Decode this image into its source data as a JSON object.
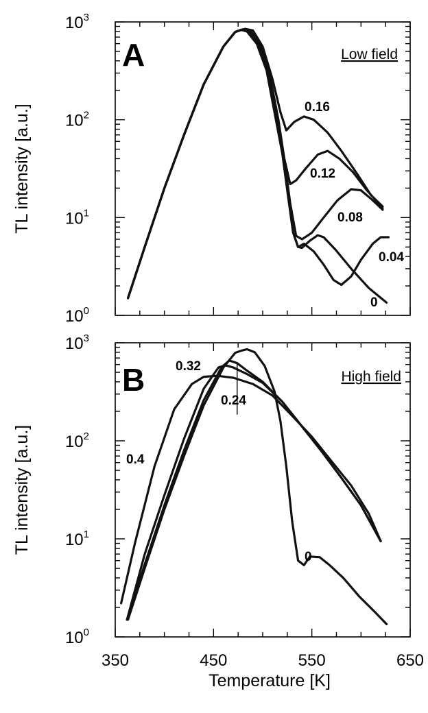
{
  "chart_data": [
    {
      "panel": "A",
      "type": "line",
      "title": "",
      "tag": "Low field",
      "ylabel": "TL intensity [a.u.]",
      "xlabel": "",
      "xlim": [
        350,
        650
      ],
      "ylim": [
        1,
        1000
      ],
      "yscale": "log",
      "x_ticks": [],
      "y_ticks": [
        {
          "base": "10",
          "exp": "0"
        },
        {
          "base": "10",
          "exp": "1"
        },
        {
          "base": "10",
          "exp": "2"
        },
        {
          "base": "10",
          "exp": "3"
        }
      ],
      "series": [
        {
          "name": "0",
          "points": [
            [
              363,
              1.5
            ],
            [
              380,
              5
            ],
            [
              400,
              20
            ],
            [
              420,
              70
            ],
            [
              440,
              230
            ],
            [
              460,
              560
            ],
            [
              472,
              790
            ],
            [
              478,
              830
            ],
            [
              484,
              800
            ],
            [
              494,
              600
            ],
            [
              504,
              320
            ],
            [
              512,
              120
            ],
            [
              520,
              45
            ],
            [
              526,
              16
            ],
            [
              531,
              7
            ],
            [
              536,
              5
            ],
            [
              540,
              4.9
            ],
            [
              548,
              5.8
            ],
            [
              556,
              6.6
            ],
            [
              562,
              6.3
            ],
            [
              574,
              4.7
            ],
            [
              590,
              3
            ],
            [
              608,
              1.9
            ],
            [
              626,
              1.35
            ]
          ]
        },
        {
          "name": "0.04",
          "points": [
            [
              363,
              1.5
            ],
            [
              380,
              5
            ],
            [
              400,
              20
            ],
            [
              420,
              70
            ],
            [
              440,
              230
            ],
            [
              460,
              560
            ],
            [
              472,
              790
            ],
            [
              478,
              830
            ],
            [
              484,
              800
            ],
            [
              494,
              600
            ],
            [
              504,
              320
            ],
            [
              512,
              120
            ],
            [
              520,
              45
            ],
            [
              526,
              16
            ],
            [
              531,
              7
            ],
            [
              536,
              5
            ],
            [
              542,
              5.4
            ],
            [
              552,
              4.5
            ],
            [
              562,
              3.3
            ],
            [
              572,
              2.3
            ],
            [
              580,
              2.05
            ],
            [
              590,
              2.5
            ],
            [
              600,
              3.7
            ],
            [
              612,
              5.4
            ],
            [
              620,
              6.3
            ],
            [
              628,
              6.3
            ]
          ]
        },
        {
          "name": "0.08",
          "points": [
            [
              363,
              1.5
            ],
            [
              380,
              5
            ],
            [
              400,
              20
            ],
            [
              420,
              70
            ],
            [
              440,
              230
            ],
            [
              460,
              560
            ],
            [
              472,
              790
            ],
            [
              478,
              830
            ],
            [
              486,
              810
            ],
            [
              496,
              580
            ],
            [
              506,
              290
            ],
            [
              514,
              110
            ],
            [
              522,
              40
            ],
            [
              528,
              14
            ],
            [
              534,
              6.5
            ],
            [
              540,
              6
            ],
            [
              550,
              7
            ],
            [
              562,
              10
            ],
            [
              576,
              15
            ],
            [
              590,
              19.5
            ],
            [
              600,
              19
            ],
            [
              612,
              15
            ],
            [
              622,
              12
            ]
          ]
        },
        {
          "name": "0.12",
          "points": [
            [
              363,
              1.5
            ],
            [
              380,
              5
            ],
            [
              400,
              20
            ],
            [
              420,
              70
            ],
            [
              440,
              230
            ],
            [
              460,
              560
            ],
            [
              472,
              790
            ],
            [
              480,
              840
            ],
            [
              488,
              800
            ],
            [
              498,
              560
            ],
            [
              508,
              260
            ],
            [
              516,
              100
            ],
            [
              522,
              40
            ],
            [
              528,
              22
            ],
            [
              534,
              24
            ],
            [
              544,
              32
            ],
            [
              556,
              44
            ],
            [
              566,
              48
            ],
            [
              578,
              40
            ],
            [
              592,
              29
            ],
            [
              606,
              19
            ],
            [
              622,
              12.5
            ]
          ]
        },
        {
          "name": "0.16",
          "points": [
            [
              363,
              1.5
            ],
            [
              380,
              5
            ],
            [
              400,
              20
            ],
            [
              420,
              70
            ],
            [
              440,
              230
            ],
            [
              460,
              560
            ],
            [
              472,
              790
            ],
            [
              482,
              850
            ],
            [
              490,
              820
            ],
            [
              500,
              560
            ],
            [
              510,
              260
            ],
            [
              518,
              120
            ],
            [
              524,
              78
            ],
            [
              532,
              95
            ],
            [
              542,
              108
            ],
            [
              552,
              100
            ],
            [
              566,
              74
            ],
            [
              580,
              48
            ],
            [
              596,
              28
            ],
            [
              610,
              17
            ],
            [
              622,
              13
            ]
          ]
        }
      ],
      "labels": [
        {
          "text": "0.16",
          "series": "0.16"
        },
        {
          "text": "0.12",
          "series": "0.12"
        },
        {
          "text": "0.08",
          "series": "0.08"
        },
        {
          "text": "0.04",
          "series": "0.04"
        },
        {
          "text": "0",
          "series": "0"
        }
      ]
    },
    {
      "panel": "B",
      "type": "line",
      "title": "",
      "tag": "High field",
      "ylabel": "TL intensity [a.u.]",
      "xlabel": "Temperature [K]",
      "xlim": [
        350,
        650
      ],
      "ylim": [
        1,
        1000
      ],
      "yscale": "log",
      "x_ticks": [
        "350",
        "450",
        "550",
        "650"
      ],
      "y_ticks": [
        {
          "base": "10",
          "exp": "0"
        },
        {
          "base": "10",
          "exp": "1"
        },
        {
          "base": "10",
          "exp": "2"
        },
        {
          "base": "10",
          "exp": "3"
        }
      ],
      "series": [
        {
          "name": "0",
          "points": [
            [
              363,
              1.5
            ],
            [
              380,
              5
            ],
            [
              400,
              20
            ],
            [
              420,
              70
            ],
            [
              440,
              230
            ],
            [
              460,
              560
            ],
            [
              472,
              790
            ],
            [
              478,
              830
            ],
            [
              484,
              860
            ],
            [
              492,
              800
            ],
            [
              502,
              580
            ],
            [
              512,
              320
            ],
            [
              518,
              160
            ],
            [
              524,
              55
            ],
            [
              530,
              15
            ],
            [
              536,
              6
            ],
            [
              542,
              5.4
            ],
            [
              548,
              6.6
            ],
            [
              558,
              6.5
            ],
            [
              568,
              5.4
            ],
            [
              582,
              4
            ],
            [
              598,
              2.6
            ],
            [
              614,
              1.8
            ],
            [
              626,
              1.35
            ]
          ]
        },
        {
          "name": "0.24",
          "points": [
            [
              362,
              1.5
            ],
            [
              380,
              5.5
            ],
            [
              400,
              22
            ],
            [
              420,
              80
            ],
            [
              440,
              260
            ],
            [
              458,
              560
            ],
            [
              466,
              660
            ],
            [
              474,
              620
            ],
            [
              484,
              520
            ],
            [
              500,
              400
            ],
            [
              520,
              250
            ],
            [
              540,
              140
            ],
            [
              560,
              78
            ],
            [
              580,
              42
            ],
            [
              600,
              22
            ],
            [
              620,
              9.5
            ]
          ]
        },
        {
          "name": "0.32",
          "points": [
            [
              362,
              1.5
            ],
            [
              380,
              7
            ],
            [
              400,
              28
            ],
            [
              420,
              105
            ],
            [
              440,
              340
            ],
            [
              455,
              560
            ],
            [
              462,
              590
            ],
            [
              470,
              560
            ],
            [
              484,
              480
            ],
            [
              500,
              390
            ],
            [
              520,
              250
            ],
            [
              540,
              140
            ],
            [
              560,
              78
            ],
            [
              580,
              42
            ],
            [
              600,
              22
            ],
            [
              620,
              9.5
            ]
          ]
        },
        {
          "name": "0.4",
          "points": [
            [
              356,
              2.2
            ],
            [
              370,
              9
            ],
            [
              390,
              55
            ],
            [
              410,
              210
            ],
            [
              428,
              380
            ],
            [
              440,
              450
            ],
            [
              454,
              460
            ],
            [
              470,
              440
            ],
            [
              490,
              380
            ],
            [
              510,
              290
            ],
            [
              530,
              180
            ],
            [
              550,
              110
            ],
            [
              570,
              62
            ],
            [
              590,
              35
            ],
            [
              608,
              18
            ],
            [
              620,
              9.5
            ]
          ]
        }
      ],
      "labels": [
        {
          "text": "0.4",
          "series": "0.4"
        },
        {
          "text": "0.32",
          "series": "0.32"
        },
        {
          "text": "0.24",
          "series": "0.24"
        },
        {
          "text": "0",
          "series": "0"
        }
      ]
    }
  ]
}
